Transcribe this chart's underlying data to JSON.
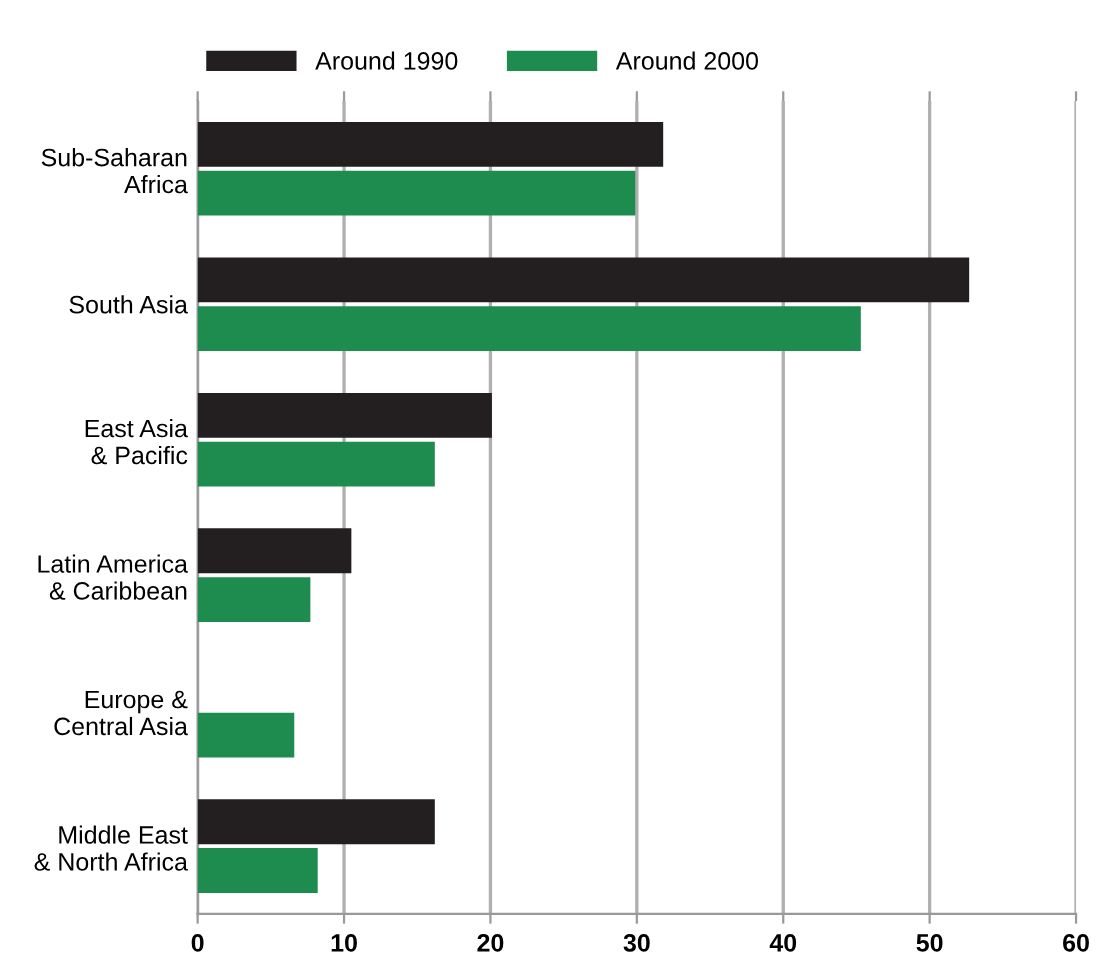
{
  "chart_data": {
    "type": "bar",
    "orientation": "horizontal",
    "categories": [
      "Sub-Saharan\nAfrica",
      "South Asia",
      "East Asia\n& Pacific",
      "Latin America\n& Caribbean",
      "Europe &\nCentral Asia",
      "Middle East\n& North Africa"
    ],
    "series": [
      {
        "name": "Around 1990",
        "color": "#231f20",
        "values": [
          31.8,
          52.7,
          20.1,
          10.5,
          null,
          16.2
        ]
      },
      {
        "name": "Around 2000",
        "color": "#1e8c4e",
        "values": [
          29.9,
          45.3,
          16.2,
          7.7,
          6.6,
          8.2
        ]
      }
    ],
    "xlim": [
      0,
      60
    ],
    "xticks": [
      0,
      10,
      20,
      30,
      40,
      50,
      60
    ],
    "grid": "x",
    "legend": "top left"
  }
}
